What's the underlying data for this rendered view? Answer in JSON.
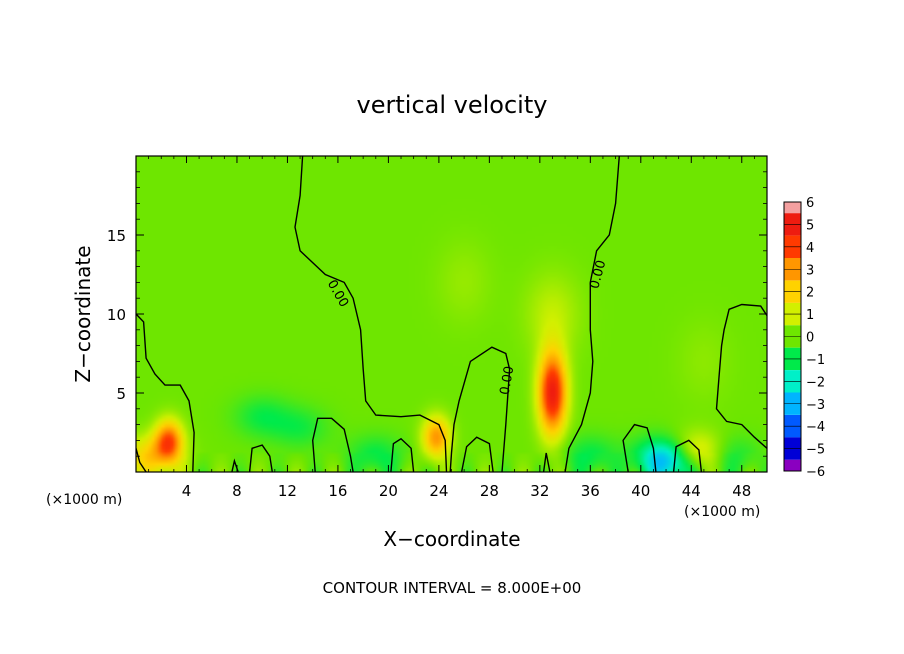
{
  "chart_data": {
    "type": "heatmap",
    "title": "vertical velocity",
    "xlabel": "X−coordinate",
    "ylabel": "Z−coordinate",
    "x_unit_left": "(×1000 m)",
    "x_unit_right": "(×1000 m)",
    "xlim": [
      0,
      50
    ],
    "ylim": [
      0,
      20
    ],
    "x_ticks": [
      4,
      8,
      12,
      16,
      20,
      24,
      28,
      32,
      36,
      40,
      44,
      48
    ],
    "y_ticks": [
      5,
      10,
      15
    ],
    "colorbar": {
      "levels": [
        6,
        5,
        4,
        3,
        2,
        1,
        0,
        -1,
        -2,
        -3,
        -4,
        -5,
        -6
      ],
      "labels": [
        "6",
        "5",
        "4",
        "3",
        "2",
        "1",
        "0",
        "−1",
        "−2",
        "−3",
        "−4",
        "−5",
        "−6"
      ],
      "colors": [
        "#f4a0a0",
        "#ee1c10",
        "#ff3a00",
        "#ff9600",
        "#ffd200",
        "#d2f000",
        "#6ee600",
        "#00ea4a",
        "#00f0c8",
        "#00b4ff",
        "#005aff",
        "#0000d6",
        "#8a00c0"
      ]
    },
    "contour_labels": [
      "0.00",
      "0.00",
      "0.00"
    ],
    "features": [
      {
        "x": 2.6,
        "z": 2.0,
        "w": 3.5
      },
      {
        "x": 1.2,
        "z": 1.0,
        "w": 2.0
      },
      {
        "x": 23.8,
        "z": 2.2,
        "w": 3.0
      },
      {
        "x": 33.0,
        "z": 5.0,
        "w": 5.0
      },
      {
        "x": 44.5,
        "z": 1.2,
        "w": 2.0
      },
      {
        "x": 10.0,
        "z": 3.5,
        "w": -0.9
      },
      {
        "x": 13.0,
        "z": 2.8,
        "w": -0.8
      },
      {
        "x": 19.0,
        "z": 1.0,
        "w": -1.0
      },
      {
        "x": 36.0,
        "z": 1.0,
        "w": -1.0
      },
      {
        "x": 41.5,
        "z": 1.0,
        "w": -1.5
      },
      {
        "x": 42.5,
        "z": 0.5,
        "w": -2.0
      },
      {
        "x": 47.0,
        "z": 1.0,
        "w": -1.0
      },
      {
        "x": 26.0,
        "z": 12.0,
        "w": 0.4
      },
      {
        "x": 33.0,
        "z": 10.0,
        "w": 0.8
      },
      {
        "x": 45.0,
        "z": 7.0,
        "w": 0.3
      }
    ],
    "zero_contours": [
      {
        "points": [
          [
            13.2,
            20
          ],
          [
            13.0,
            17.5
          ],
          [
            12.6,
            15.5
          ],
          [
            13.0,
            14.0
          ],
          [
            15.0,
            12.5
          ],
          [
            16.5,
            12.0
          ],
          [
            17.2,
            11.0
          ],
          [
            17.8,
            9.0
          ],
          [
            18.0,
            6.5
          ],
          [
            18.2,
            4.5
          ],
          [
            19.0,
            3.6
          ],
          [
            21.0,
            3.5
          ],
          [
            22.5,
            3.6
          ],
          [
            24.0,
            3.0
          ],
          [
            24.5,
            2.0
          ],
          [
            24.6,
            0
          ]
        ]
      },
      {
        "points": [
          [
            38.3,
            20
          ],
          [
            38.0,
            17.0
          ],
          [
            37.5,
            15.0
          ],
          [
            36.5,
            14.0
          ],
          [
            36.0,
            12.0
          ],
          [
            36.0,
            9.0
          ],
          [
            36.2,
            7.0
          ],
          [
            36.0,
            5.0
          ],
          [
            35.3,
            3.0
          ],
          [
            34.3,
            1.5
          ],
          [
            34.0,
            0
          ]
        ]
      },
      {
        "points": [
          [
            0,
            10.0
          ],
          [
            0.6,
            9.5
          ],
          [
            0.8,
            7.2
          ],
          [
            1.5,
            6.2
          ],
          [
            2.3,
            5.5
          ],
          [
            3.5,
            5.5
          ],
          [
            4.2,
            4.5
          ],
          [
            4.6,
            2.5
          ],
          [
            4.5,
            0
          ]
        ]
      },
      {
        "points": [
          [
            0,
            1.5
          ],
          [
            0.3,
            0.6
          ],
          [
            0.8,
            0
          ]
        ]
      },
      {
        "points": [
          [
            29.0,
            0
          ],
          [
            29.3,
            3.0
          ],
          [
            29.6,
            6.5
          ],
          [
            29.3,
            7.5
          ],
          [
            28.2,
            7.9
          ],
          [
            26.5,
            7.0
          ],
          [
            25.6,
            4.5
          ],
          [
            25.2,
            3.0
          ],
          [
            25.0,
            1.2
          ],
          [
            24.9,
            0
          ]
        ]
      },
      {
        "points": [
          [
            50,
            9.9
          ],
          [
            49.5,
            10.5
          ],
          [
            48.0,
            10.6
          ],
          [
            47.0,
            10.3
          ],
          [
            46.6,
            9.0
          ],
          [
            46.4,
            8.0
          ],
          [
            46.2,
            6.0
          ],
          [
            46.0,
            4.0
          ],
          [
            46.8,
            3.2
          ],
          [
            48.0,
            3.0
          ],
          [
            49.0,
            2.2
          ],
          [
            50,
            1.5
          ]
        ]
      },
      {
        "points": [
          [
            9.0,
            0
          ],
          [
            9.2,
            1.5
          ],
          [
            10.0,
            1.7
          ],
          [
            10.6,
            1.0
          ],
          [
            10.8,
            0
          ]
        ]
      },
      {
        "points": [
          [
            14.2,
            0
          ],
          [
            14.0,
            2.0
          ],
          [
            14.4,
            3.4
          ],
          [
            15.5,
            3.4
          ],
          [
            16.5,
            2.7
          ],
          [
            17.0,
            1.0
          ],
          [
            17.2,
            0
          ]
        ]
      },
      {
        "points": [
          [
            20.2,
            0
          ],
          [
            20.4,
            1.8
          ],
          [
            21.0,
            2.1
          ],
          [
            21.8,
            1.5
          ],
          [
            22.0,
            0
          ]
        ]
      },
      {
        "points": [
          [
            25.8,
            0
          ],
          [
            26.2,
            1.6
          ],
          [
            27.0,
            2.2
          ],
          [
            28.0,
            1.8
          ],
          [
            28.3,
            0
          ]
        ]
      },
      {
        "points": [
          [
            39.0,
            0
          ],
          [
            38.6,
            2.0
          ],
          [
            39.5,
            3.0
          ],
          [
            40.5,
            2.8
          ],
          [
            41.0,
            1.5
          ],
          [
            41.2,
            0
          ]
        ]
      },
      {
        "points": [
          [
            42.6,
            0
          ],
          [
            42.8,
            1.6
          ],
          [
            43.8,
            2.0
          ],
          [
            44.6,
            1.4
          ],
          [
            44.8,
            0
          ]
        ]
      },
      {
        "points": [
          [
            7.6,
            0
          ],
          [
            7.8,
            0.7
          ],
          [
            8.1,
            0
          ]
        ]
      },
      {
        "points": [
          [
            32.3,
            0
          ],
          [
            32.5,
            1.2
          ],
          [
            32.8,
            0
          ]
        ]
      }
    ]
  },
  "footer": {
    "contour_interval": "CONTOUR INTERVAL = 8.000E+00"
  }
}
